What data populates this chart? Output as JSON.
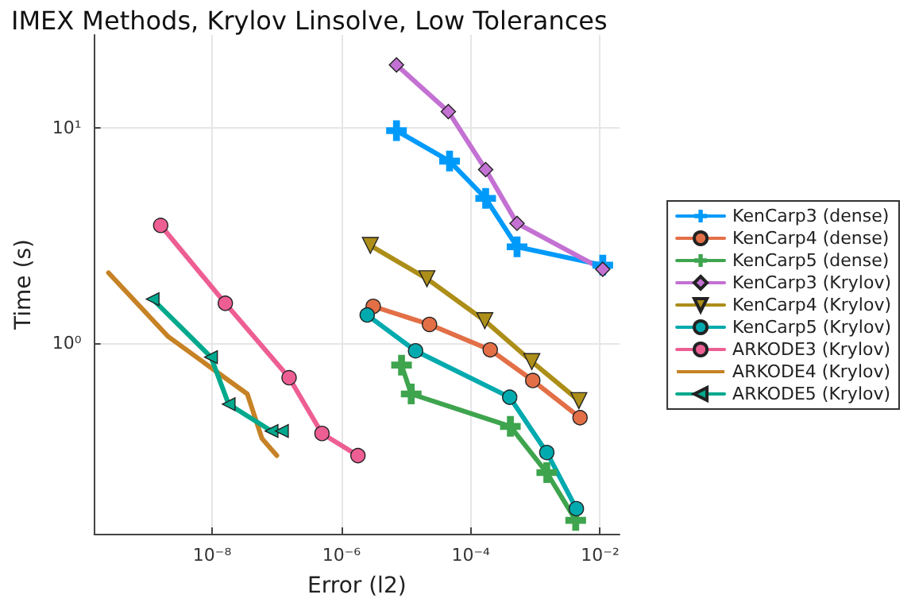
{
  "chart_data": {
    "type": "line",
    "title": "IMEX Methods, Krylov Linsolve, Low Tolerances",
    "xlabel": "Error (l2)",
    "ylabel": "Time (s)",
    "log": "xy",
    "grid": true,
    "legend": "right",
    "xlim": [
      1.5e-10,
      0.02
    ],
    "xticks": [
      {
        "value": 1e-08,
        "label": "10⁻⁸"
      },
      {
        "value": 1e-06,
        "label": "10⁻⁶"
      },
      {
        "value": 0.0001,
        "label": "10⁻⁴"
      },
      {
        "value": 0.01,
        "label": "10⁻²"
      }
    ],
    "ylim": [
      0.13,
      27
    ],
    "yticks": [
      {
        "value": 1,
        "label": "10⁰"
      },
      {
        "value": 10,
        "label": "10¹"
      }
    ],
    "series": [
      {
        "name": "KenCarp3 (dense)",
        "color": "#009afa",
        "marker": "cross",
        "x": [
          7.1e-06,
          4.7e-05,
          0.00017,
          0.00052,
          0.011
        ],
        "values": [
          9.7,
          7.0,
          4.7,
          2.8,
          2.3
        ]
      },
      {
        "name": "KenCarp4 (dense)",
        "color": "#e36f47",
        "marker": "circle",
        "x": [
          3.1e-06,
          2.3e-05,
          0.0002,
          0.00091,
          0.0049
        ],
        "values": [
          1.48,
          1.22,
          0.93,
          0.67,
          0.45
        ]
      },
      {
        "name": "KenCarp5 (dense)",
        "color": "#3ea44e",
        "marker": "cross",
        "x": [
          8.5e-06,
          1.2e-05,
          0.00041,
          0.0015,
          0.0042
        ],
        "values": [
          0.79,
          0.58,
          0.41,
          0.25,
          0.15
        ]
      },
      {
        "name": "KenCarp3 (Krylov)",
        "color": "#c371d2",
        "marker": "diamond",
        "x": [
          7.1e-06,
          4.5e-05,
          0.00017,
          0.00052,
          0.011
        ],
        "values": [
          19.6,
          11.9,
          6.4,
          3.6,
          2.2
        ]
      },
      {
        "name": "KenCarp4 (Krylov)",
        "color": "#ac8e18",
        "marker": "triangle-down",
        "x": [
          2.8e-06,
          2.1e-05,
          0.000165,
          0.00088,
          0.0047
        ],
        "values": [
          2.84,
          1.99,
          1.27,
          0.82,
          0.54
        ]
      },
      {
        "name": "KenCarp5 (Krylov)",
        "color": "#00aaae",
        "marker": "circle",
        "x": [
          2.5e-06,
          1.4e-05,
          0.0004,
          0.0015,
          0.0043
        ],
        "values": [
          1.35,
          0.92,
          0.56,
          0.31,
          0.17
        ]
      },
      {
        "name": "ARKODE3 (Krylov)",
        "color": "#ed5e93",
        "marker": "circle",
        "x": [
          1.6e-09,
          1.6e-08,
          1.55e-07,
          5e-07,
          1.8e-06
        ],
        "values": [
          3.52,
          1.53,
          0.69,
          0.38,
          0.3
        ]
      },
      {
        "name": "ARKODE4 (Krylov)",
        "color": "#c68225",
        "marker": "none",
        "x": [
          2.5e-10,
          2.1e-09,
          3.5e-08,
          5.9e-08,
          1e-07
        ],
        "values": [
          2.12,
          1.07,
          0.58,
          0.36,
          0.3
        ]
      },
      {
        "name": "ARKODE5 (Krylov)",
        "color": "#00a98d",
        "marker": "triangle-left",
        "x": [
          1.2e-09,
          9.6e-09,
          1.8e-08,
          8.3e-08,
          1.2e-07
        ],
        "values": [
          1.6,
          0.86,
          0.52,
          0.39,
          0.39
        ]
      }
    ]
  }
}
